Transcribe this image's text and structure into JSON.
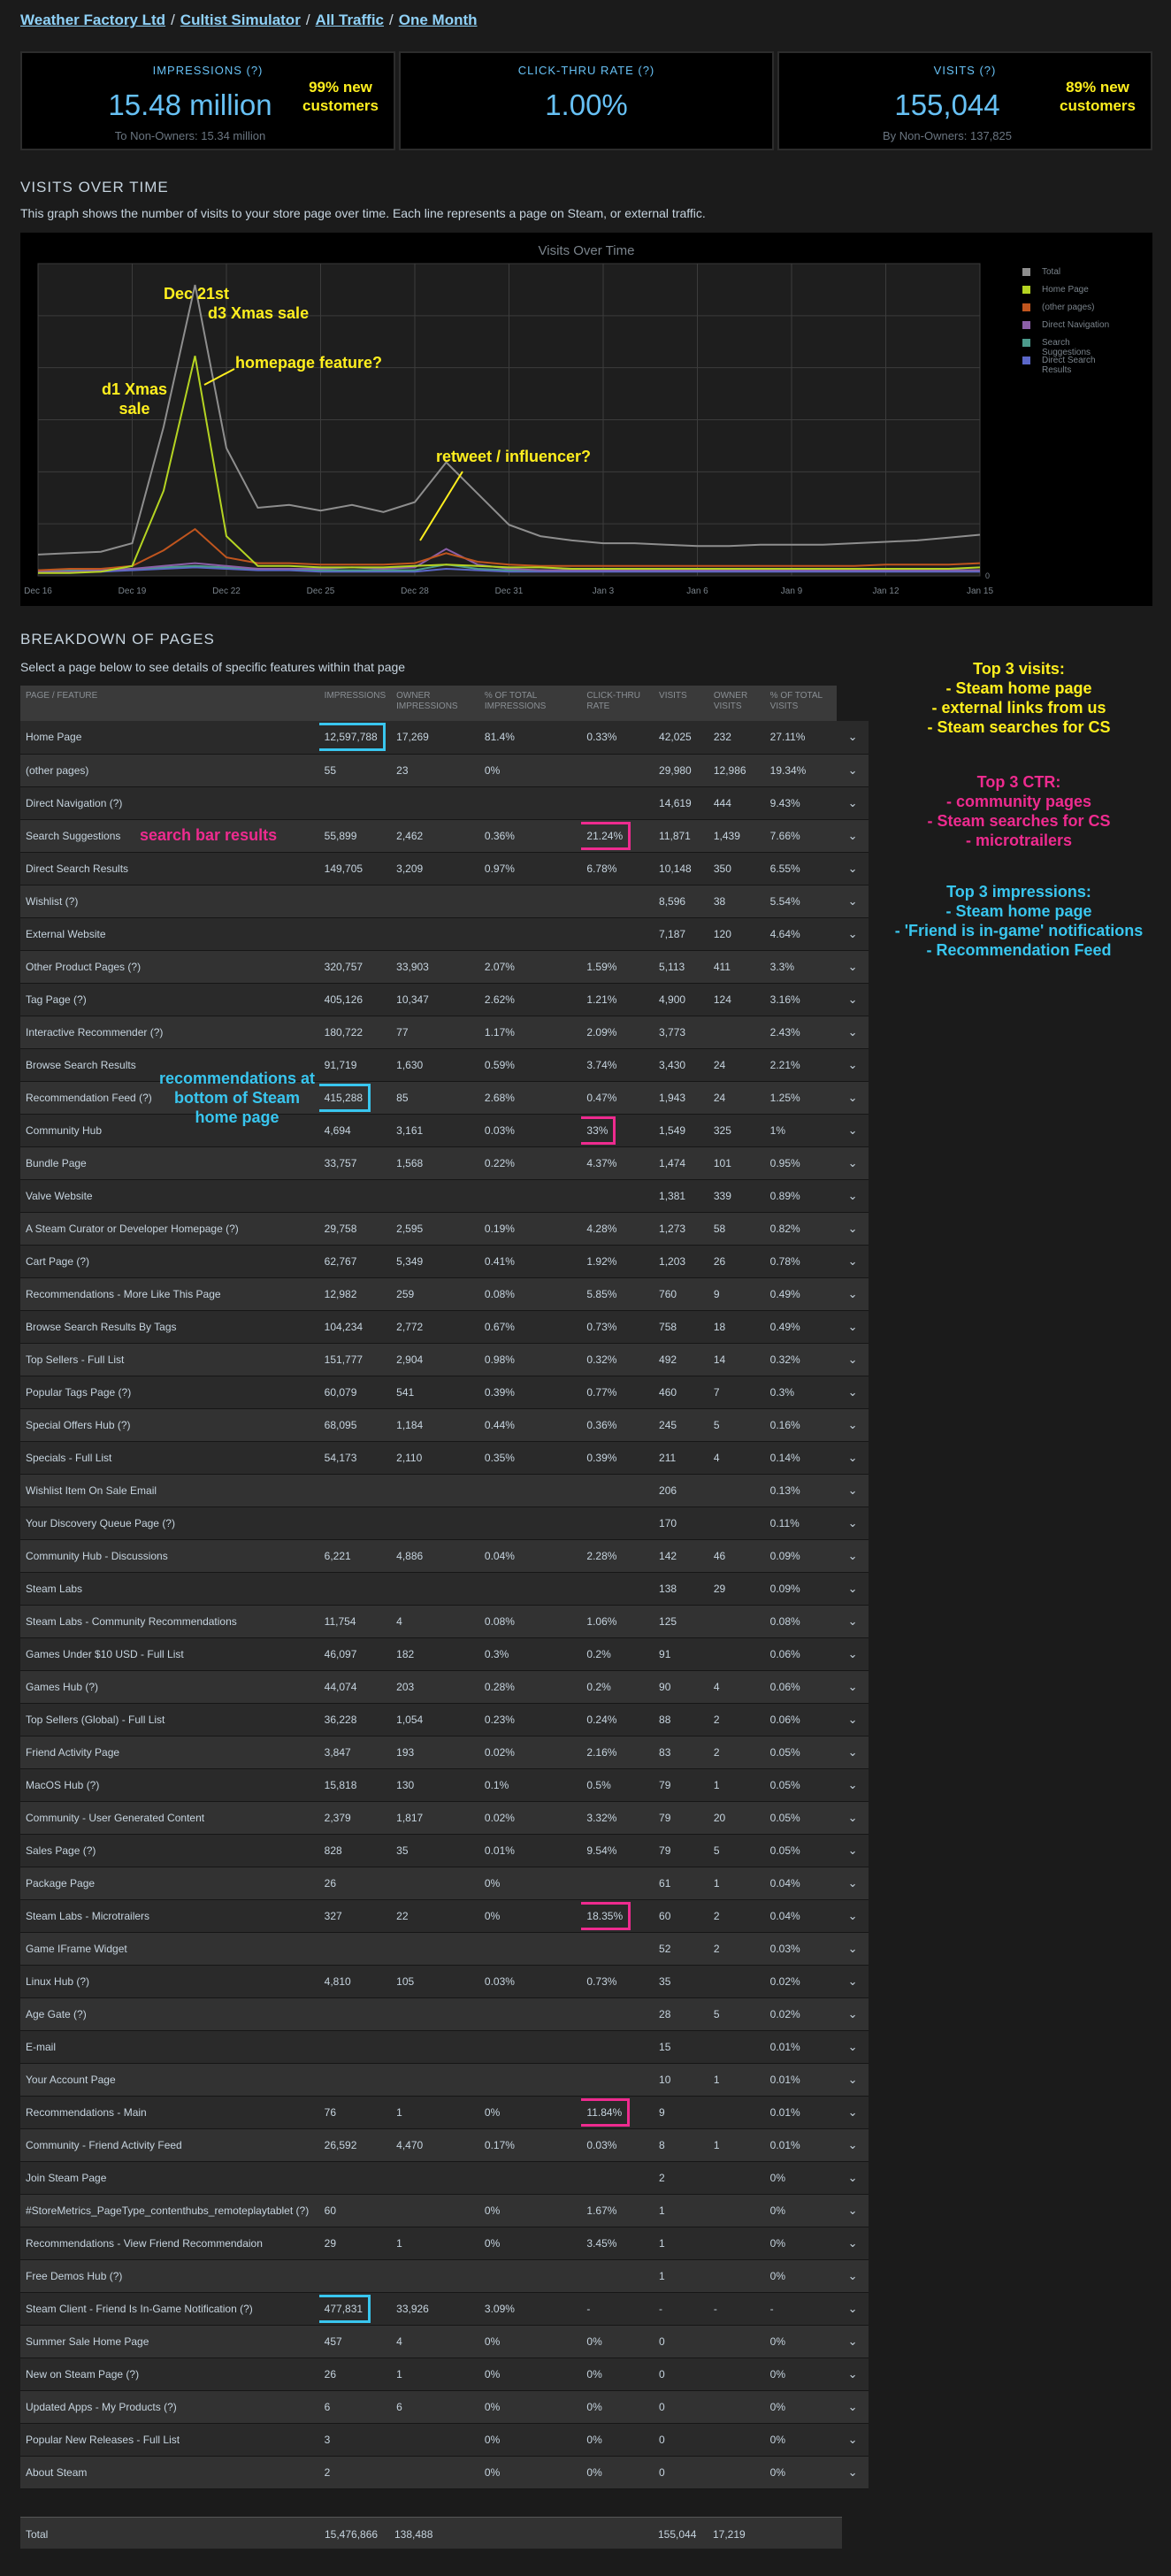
{
  "breadcrumb": {
    "developer": "Weather Factory Ltd",
    "game": "Cultist Simulator",
    "traffic": "All Traffic",
    "period": "One Month"
  },
  "stats": [
    {
      "label": "IMPRESSIONS (?)",
      "value": "15.48 million",
      "sub": "To Non-Owners: 15.34 million",
      "note": "99% new customers"
    },
    {
      "label": "CLICK-THRU RATE (?)",
      "value": "1.00%",
      "sub": "",
      "note": ""
    },
    {
      "label": "VISITS (?)",
      "value": "155,044",
      "sub": "By Non-Owners: 137,825",
      "note": "89% new customers"
    }
  ],
  "visits_section": {
    "heading": "VISITS OVER TIME",
    "description": "This graph shows the number of visits to your store page over time. Each line represents a page on Steam, or external traffic."
  },
  "chart_annotations": {
    "dec21": "Dec 21st",
    "d3": "d3 Xmas sale",
    "homepage": "homepage feature?",
    "d1": "d1 Xmas sale",
    "retweet": "retweet / influencer?"
  },
  "chart_data": {
    "type": "line",
    "title": "Visits Over Time",
    "xlabel": "",
    "ylabel": "",
    "x_ticks": [
      "Dec 16",
      "Dec 19",
      "Dec 22",
      "Dec 25",
      "Dec 28",
      "Dec 31",
      "Jan 3",
      "Jan 6",
      "Jan 9",
      "Jan 12",
      "Jan 15"
    ],
    "ylim": [
      0,
      22000
    ],
    "y_ticks": [
      "0"
    ],
    "grid": true,
    "legend_position": "right",
    "colors": {
      "Total": "#8e8e8e",
      "Home Page": "#b5d422",
      "(other pages)": "#c0551e",
      "Direct Navigation": "#8b5fa8",
      "Search Suggestions": "#4c9a8c",
      "Direct Search Results": "#5b67c9"
    },
    "series": [
      {
        "name": "Total",
        "values": [
          1500,
          1600,
          1700,
          2300,
          10500,
          20500,
          9000,
          4800,
          5000,
          4600,
          5000,
          4500,
          5200,
          8000,
          5800,
          3600,
          2800,
          2500,
          2300,
          2300,
          2200,
          2100,
          2100,
          2200,
          2200,
          2200,
          2300,
          2400,
          2500,
          2700,
          2900
        ]
      },
      {
        "name": "Home Page",
        "values": [
          200,
          200,
          300,
          700,
          6000,
          15500,
          2800,
          700,
          700,
          600,
          600,
          600,
          700,
          800,
          700,
          600,
          600,
          500,
          500,
          500,
          500,
          500,
          500,
          500,
          500,
          500,
          500,
          500,
          500,
          500,
          600
        ]
      },
      {
        "name": "(other pages)",
        "values": [
          400,
          500,
          500,
          700,
          1800,
          3300,
          1300,
          900,
          900,
          800,
          800,
          800,
          900,
          1600,
          1000,
          800,
          700,
          700,
          700,
          700,
          700,
          700,
          700,
          700,
          700,
          700,
          700,
          800,
          800,
          800,
          900
        ]
      },
      {
        "name": "Direct Navigation",
        "values": [
          300,
          300,
          400,
          500,
          700,
          900,
          700,
          500,
          500,
          500,
          600,
          500,
          600,
          1900,
          800,
          500,
          400,
          400,
          400,
          400,
          400,
          400,
          400,
          400,
          400,
          400,
          400,
          400,
          400,
          400,
          400
        ]
      },
      {
        "name": "Search Suggestions",
        "values": [
          400,
          400,
          400,
          500,
          600,
          700,
          600,
          500,
          500,
          400,
          400,
          400,
          400,
          800,
          500,
          400,
          400,
          400,
          400,
          400,
          400,
          400,
          400,
          400,
          400,
          400,
          400,
          400,
          400,
          400,
          400
        ]
      },
      {
        "name": "Direct Search Results",
        "values": [
          300,
          300,
          300,
          400,
          500,
          600,
          500,
          400,
          400,
          300,
          300,
          300,
          300,
          500,
          400,
          300,
          300,
          300,
          300,
          300,
          300,
          300,
          300,
          300,
          300,
          300,
          300,
          300,
          300,
          300,
          300
        ]
      }
    ]
  },
  "breakdown": {
    "heading": "BREAKDOWN OF PAGES",
    "description": "Select a page below to see details of specific features within that page",
    "columns": [
      "PAGE / FEATURE",
      "IMPRESSIONS",
      "OWNER IMPRESSIONS",
      "% OF TOTAL IMPRESSIONS",
      "CLICK-THRU RATE",
      "VISITS",
      "OWNER VISITS",
      "% OF TOTAL VISITS"
    ],
    "rows": [
      [
        "Home Page",
        "12,597,788",
        "17,269",
        "81.4%",
        "0.33%",
        "42,025",
        "232",
        "27.11%"
      ],
      [
        "(other pages)",
        "55",
        "23",
        "0%",
        "",
        "29,980",
        "12,986",
        "19.34%"
      ],
      [
        "Direct Navigation (?)",
        "",
        "",
        "",
        "",
        "14,619",
        "444",
        "9.43%"
      ],
      [
        "Search Suggestions",
        "55,899",
        "2,462",
        "0.36%",
        "21.24%",
        "11,871",
        "1,439",
        "7.66%"
      ],
      [
        "Direct Search Results",
        "149,705",
        "3,209",
        "0.97%",
        "6.78%",
        "10,148",
        "350",
        "6.55%"
      ],
      [
        "Wishlist (?)",
        "",
        "",
        "",
        "",
        "8,596",
        "38",
        "5.54%"
      ],
      [
        "External Website",
        "",
        "",
        "",
        "",
        "7,187",
        "120",
        "4.64%"
      ],
      [
        "Other Product Pages (?)",
        "320,757",
        "33,903",
        "2.07%",
        "1.59%",
        "5,113",
        "411",
        "3.3%"
      ],
      [
        "Tag Page (?)",
        "405,126",
        "10,347",
        "2.62%",
        "1.21%",
        "4,900",
        "124",
        "3.16%"
      ],
      [
        "Interactive Recommender (?)",
        "180,722",
        "77",
        "1.17%",
        "2.09%",
        "3,773",
        "",
        "2.43%"
      ],
      [
        "Browse Search Results",
        "91,719",
        "1,630",
        "0.59%",
        "3.74%",
        "3,430",
        "24",
        "2.21%"
      ],
      [
        "Recommendation Feed (?)",
        "415,288",
        "85",
        "2.68%",
        "0.47%",
        "1,943",
        "24",
        "1.25%"
      ],
      [
        "Community Hub",
        "4,694",
        "3,161",
        "0.03%",
        "33%",
        "1,549",
        "325",
        "1%"
      ],
      [
        "Bundle Page",
        "33,757",
        "1,568",
        "0.22%",
        "4.37%",
        "1,474",
        "101",
        "0.95%"
      ],
      [
        "Valve Website",
        "",
        "",
        "",
        "",
        "1,381",
        "339",
        "0.89%"
      ],
      [
        "A Steam Curator or Developer Homepage (?)",
        "29,758",
        "2,595",
        "0.19%",
        "4.28%",
        "1,273",
        "58",
        "0.82%"
      ],
      [
        "Cart Page (?)",
        "62,767",
        "5,349",
        "0.41%",
        "1.92%",
        "1,203",
        "26",
        "0.78%"
      ],
      [
        "Recommendations - More Like This Page",
        "12,982",
        "259",
        "0.08%",
        "5.85%",
        "760",
        "9",
        "0.49%"
      ],
      [
        "Browse Search Results By Tags",
        "104,234",
        "2,772",
        "0.67%",
        "0.73%",
        "758",
        "18",
        "0.49%"
      ],
      [
        "Top Sellers - Full List",
        "151,777",
        "2,904",
        "0.98%",
        "0.32%",
        "492",
        "14",
        "0.32%"
      ],
      [
        "Popular Tags Page (?)",
        "60,079",
        "541",
        "0.39%",
        "0.77%",
        "460",
        "7",
        "0.3%"
      ],
      [
        "Special Offers Hub (?)",
        "68,095",
        "1,184",
        "0.44%",
        "0.36%",
        "245",
        "5",
        "0.16%"
      ],
      [
        "Specials - Full List",
        "54,173",
        "2,110",
        "0.35%",
        "0.39%",
        "211",
        "4",
        "0.14%"
      ],
      [
        "Wishlist Item On Sale Email",
        "",
        "",
        "",
        "",
        "206",
        "",
        "0.13%"
      ],
      [
        "Your Discovery Queue Page (?)",
        "",
        "",
        "",
        "",
        "170",
        "",
        "0.11%"
      ],
      [
        "Community Hub - Discussions",
        "6,221",
        "4,886",
        "0.04%",
        "2.28%",
        "142",
        "46",
        "0.09%"
      ],
      [
        "Steam Labs",
        "",
        "",
        "",
        "",
        "138",
        "29",
        "0.09%"
      ],
      [
        "Steam Labs - Community Recommendations",
        "11,754",
        "4",
        "0.08%",
        "1.06%",
        "125",
        "",
        "0.08%"
      ],
      [
        "Games Under $10 USD - Full List",
        "46,097",
        "182",
        "0.3%",
        "0.2%",
        "91",
        "",
        "0.06%"
      ],
      [
        "Games Hub (?)",
        "44,074",
        "203",
        "0.28%",
        "0.2%",
        "90",
        "4",
        "0.06%"
      ],
      [
        "Top Sellers (Global) - Full List",
        "36,228",
        "1,054",
        "0.23%",
        "0.24%",
        "88",
        "2",
        "0.06%"
      ],
      [
        "Friend Activity Page",
        "3,847",
        "193",
        "0.02%",
        "2.16%",
        "83",
        "2",
        "0.05%"
      ],
      [
        "MacOS Hub (?)",
        "15,818",
        "130",
        "0.1%",
        "0.5%",
        "79",
        "1",
        "0.05%"
      ],
      [
        "Community - User Generated Content",
        "2,379",
        "1,817",
        "0.02%",
        "3.32%",
        "79",
        "20",
        "0.05%"
      ],
      [
        "Sales Page (?)",
        "828",
        "35",
        "0.01%",
        "9.54%",
        "79",
        "5",
        "0.05%"
      ],
      [
        "Package Page",
        "26",
        "",
        "0%",
        "",
        "61",
        "1",
        "0.04%"
      ],
      [
        "Steam Labs - Microtrailers",
        "327",
        "22",
        "0%",
        "18.35%",
        "60",
        "2",
        "0.04%"
      ],
      [
        "Game IFrame Widget",
        "",
        "",
        "",
        "",
        "52",
        "2",
        "0.03%"
      ],
      [
        "Linux Hub (?)",
        "4,810",
        "105",
        "0.03%",
        "0.73%",
        "35",
        "",
        "0.02%"
      ],
      [
        "Age Gate (?)",
        "",
        "",
        "",
        "",
        "28",
        "5",
        "0.02%"
      ],
      [
        "E-mail",
        "",
        "",
        "",
        "",
        "15",
        "",
        "0.01%"
      ],
      [
        "Your Account Page",
        "",
        "",
        "",
        "",
        "10",
        "1",
        "0.01%"
      ],
      [
        "Recommendations - Main",
        "76",
        "1",
        "0%",
        "11.84%",
        "9",
        "",
        "0.01%"
      ],
      [
        "Community - Friend Activity Feed",
        "26,592",
        "4,470",
        "0.17%",
        "0.03%",
        "8",
        "1",
        "0.01%"
      ],
      [
        "Join Steam Page",
        "",
        "",
        "",
        "",
        "2",
        "",
        "0%"
      ],
      [
        "#StoreMetrics_PageType_contenthubs_remoteplaytablet (?)",
        "60",
        "",
        "0%",
        "1.67%",
        "1",
        "",
        "0%"
      ],
      [
        "Recommendations - View Friend Recommendaion",
        "29",
        "1",
        "0%",
        "3.45%",
        "1",
        "",
        "0%"
      ],
      [
        "Free Demos Hub (?)",
        "",
        "",
        "",
        "",
        "1",
        "",
        "0%"
      ],
      [
        "Steam Client - Friend Is In-Game Notification (?)",
        "477,831",
        "33,926",
        "3.09%",
        "-",
        "-",
        "-",
        "-"
      ],
      [
        "Summer Sale Home Page",
        "457",
        "4",
        "0%",
        "0%",
        "0",
        "",
        "0%"
      ],
      [
        "New on Steam Page (?)",
        "26",
        "1",
        "0%",
        "0%",
        "0",
        "",
        "0%"
      ],
      [
        "Updated Apps - My Products (?)",
        "6",
        "6",
        "0%",
        "0%",
        "0",
        "",
        "0%"
      ],
      [
        "Popular New Releases - Full List",
        "3",
        "",
        "0%",
        "0%",
        "0",
        "",
        "0%"
      ],
      [
        "About Steam",
        "2",
        "",
        "0%",
        "0%",
        "0",
        "",
        "0%"
      ]
    ],
    "total": {
      "label": "Total",
      "impressions": "15,476,866",
      "owner_impressions": "138,488",
      "visits": "155,044",
      "owner_visits": "17,219"
    }
  },
  "table_annotations": {
    "search_bar": "search bar results",
    "recs": "recommendations at bottom of Steam home page"
  },
  "side_notes": {
    "visits": {
      "title": "Top 3 visits:",
      "items": [
        "- Steam home page",
        "- external links from us",
        "- Steam searches for CS"
      ],
      "color": "#ffef1e"
    },
    "ctr": {
      "title": "Top 3 CTR:",
      "items": [
        "- community pages",
        "- Steam searches for CS",
        "- microtrailers"
      ],
      "color": "#ee2b8f"
    },
    "impressions": {
      "title": "Top 3 impressions:",
      "items": [
        "- Steam home page",
        "- 'Friend is in-game' notifications",
        "- Recommendation Feed"
      ],
      "color": "#39c6ef"
    }
  },
  "highlights": {
    "blue": [
      "12,597,788",
      "415,288",
      "477,831"
    ],
    "pink": [
      "21.24%",
      "33%",
      "18.35%",
      "11.84%"
    ]
  },
  "icons": {
    "row_expand": "chevron-down-icon"
  }
}
